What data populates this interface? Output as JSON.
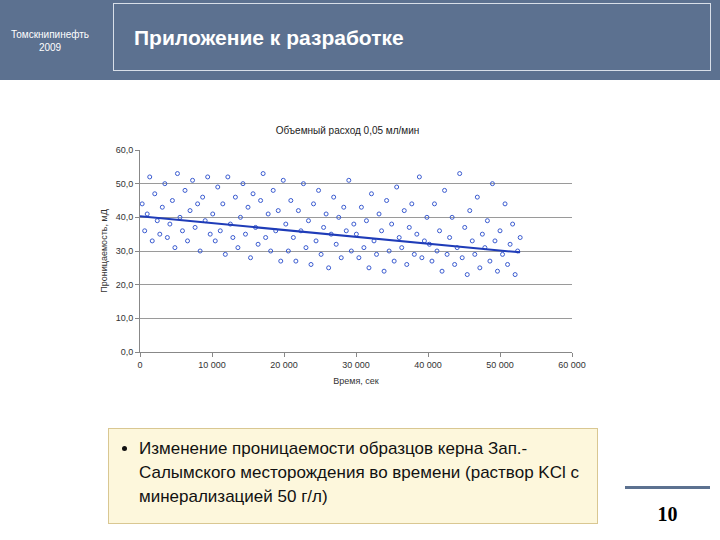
{
  "header": {
    "org": "Томскнипинефть",
    "year": "2009",
    "title": "Приложение к разработке"
  },
  "caption": "Изменение проницаемости образцов керна Зап.-Салымского месторождения во времени (раствор KCl с минерализацией 50 г/л)",
  "page": "10",
  "chart_data": {
    "type": "scatter",
    "title": "Объемный расход 0,05 мл/мин",
    "x_label": "Время, сек",
    "y_label": "Проницаемость, мД",
    "xlim": [
      0,
      60000
    ],
    "xticks": [
      0,
      {
        "value": 10000,
        "label": "10 000"
      },
      {
        "value": 20000,
        "label": "20 000"
      },
      {
        "value": 30000,
        "label": "30 000"
      },
      {
        "value": 40000,
        "label": "40 000"
      },
      {
        "value": 50000,
        "label": "50 000"
      },
      {
        "value": 60000,
        "label": "60 000"
      }
    ],
    "ylim": [
      0,
      60
    ],
    "yticks": [
      {
        "value": 0,
        "label": "0,0"
      },
      {
        "value": 10,
        "label": "10,0"
      },
      {
        "value": 20,
        "label": "20,0"
      },
      {
        "value": 30,
        "label": "30,0"
      },
      {
        "value": 40,
        "label": "40,0"
      },
      {
        "value": 50,
        "label": "50,0"
      },
      {
        "value": 60,
        "label": "60,0"
      }
    ],
    "grid": true,
    "series": [
      {
        "type": "scatter",
        "color": "#3a5bd0",
        "marker": "circle-open",
        "x": [
          300,
          650,
          1000,
          1350,
          1700,
          2050,
          2400,
          2750,
          3100,
          3450,
          3800,
          4150,
          4500,
          4850,
          5200,
          5550,
          5900,
          6250,
          6600,
          6950,
          7300,
          7650,
          8000,
          8350,
          8700,
          9050,
          9400,
          9750,
          10100,
          10450,
          10800,
          11150,
          11500,
          11850,
          12200,
          12550,
          12900,
          13250,
          13600,
          13950,
          14300,
          14650,
          15000,
          15350,
          15700,
          16050,
          16400,
          16750,
          17100,
          17450,
          17800,
          18150,
          18500,
          18850,
          19200,
          19550,
          19900,
          20250,
          20600,
          20950,
          21300,
          21650,
          22000,
          22350,
          22700,
          23050,
          23400,
          23750,
          24100,
          24450,
          24800,
          25150,
          25500,
          25850,
          26200,
          26550,
          26900,
          27250,
          27600,
          27950,
          28300,
          28650,
          29000,
          29350,
          29700,
          30050,
          30400,
          30750,
          31100,
          31450,
          31800,
          32150,
          32500,
          32850,
          33200,
          33550,
          33900,
          34250,
          34600,
          34950,
          35300,
          35650,
          36000,
          36350,
          36700,
          37050,
          37400,
          37750,
          38100,
          38450,
          38800,
          39150,
          39500,
          39850,
          40200,
          40550,
          40900,
          41250,
          41600,
          41950,
          42300,
          42650,
          43000,
          43350,
          43700,
          44050,
          44400,
          44750,
          45100,
          45450,
          45800,
          46150,
          46500,
          46850,
          47200,
          47550,
          47900,
          48250,
          48600,
          48950,
          49300,
          49650,
          50000,
          50350,
          50700,
          51050,
          51400,
          51750,
          52100,
          52450,
          52800
        ],
        "values": [
          44,
          36,
          41,
          52,
          33,
          47,
          39,
          35,
          43,
          50,
          34,
          38,
          45,
          31,
          53,
          40,
          36,
          48,
          33,
          42,
          51,
          37,
          44,
          30,
          46,
          39,
          52,
          35,
          41,
          33,
          49,
          36,
          44,
          29,
          52,
          38,
          34,
          46,
          31,
          40,
          50,
          35,
          43,
          28,
          47,
          37,
          32,
          45,
          53,
          34,
          41,
          30,
          48,
          36,
          42,
          27,
          51,
          38,
          30,
          45,
          34,
          27,
          42,
          36,
          50,
          31,
          39,
          26,
          44,
          33,
          48,
          29,
          37,
          41,
          25,
          35,
          46,
          32,
          40,
          28,
          43,
          36,
          51,
          30,
          38,
          35,
          28,
          43,
          31,
          39,
          25,
          47,
          33,
          29,
          41,
          36,
          24,
          45,
          30,
          38,
          27,
          49,
          34,
          31,
          42,
          26,
          37,
          44,
          29,
          35,
          52,
          28,
          33,
          40,
          32,
          27,
          44,
          30,
          36,
          24,
          48,
          29,
          34,
          40,
          26,
          31,
          53,
          28,
          37,
          23,
          42,
          33,
          29,
          46,
          25,
          35,
          31,
          39,
          27,
          50,
          33,
          24,
          36,
          29,
          44,
          26,
          32,
          38,
          23,
          30,
          34
        ]
      },
      {
        "type": "line",
        "color": "#1f3cb8",
        "line_style": "solid",
        "x": [
          0,
          52800
        ],
        "values": [
          40.3,
          29.6
        ]
      }
    ]
  }
}
